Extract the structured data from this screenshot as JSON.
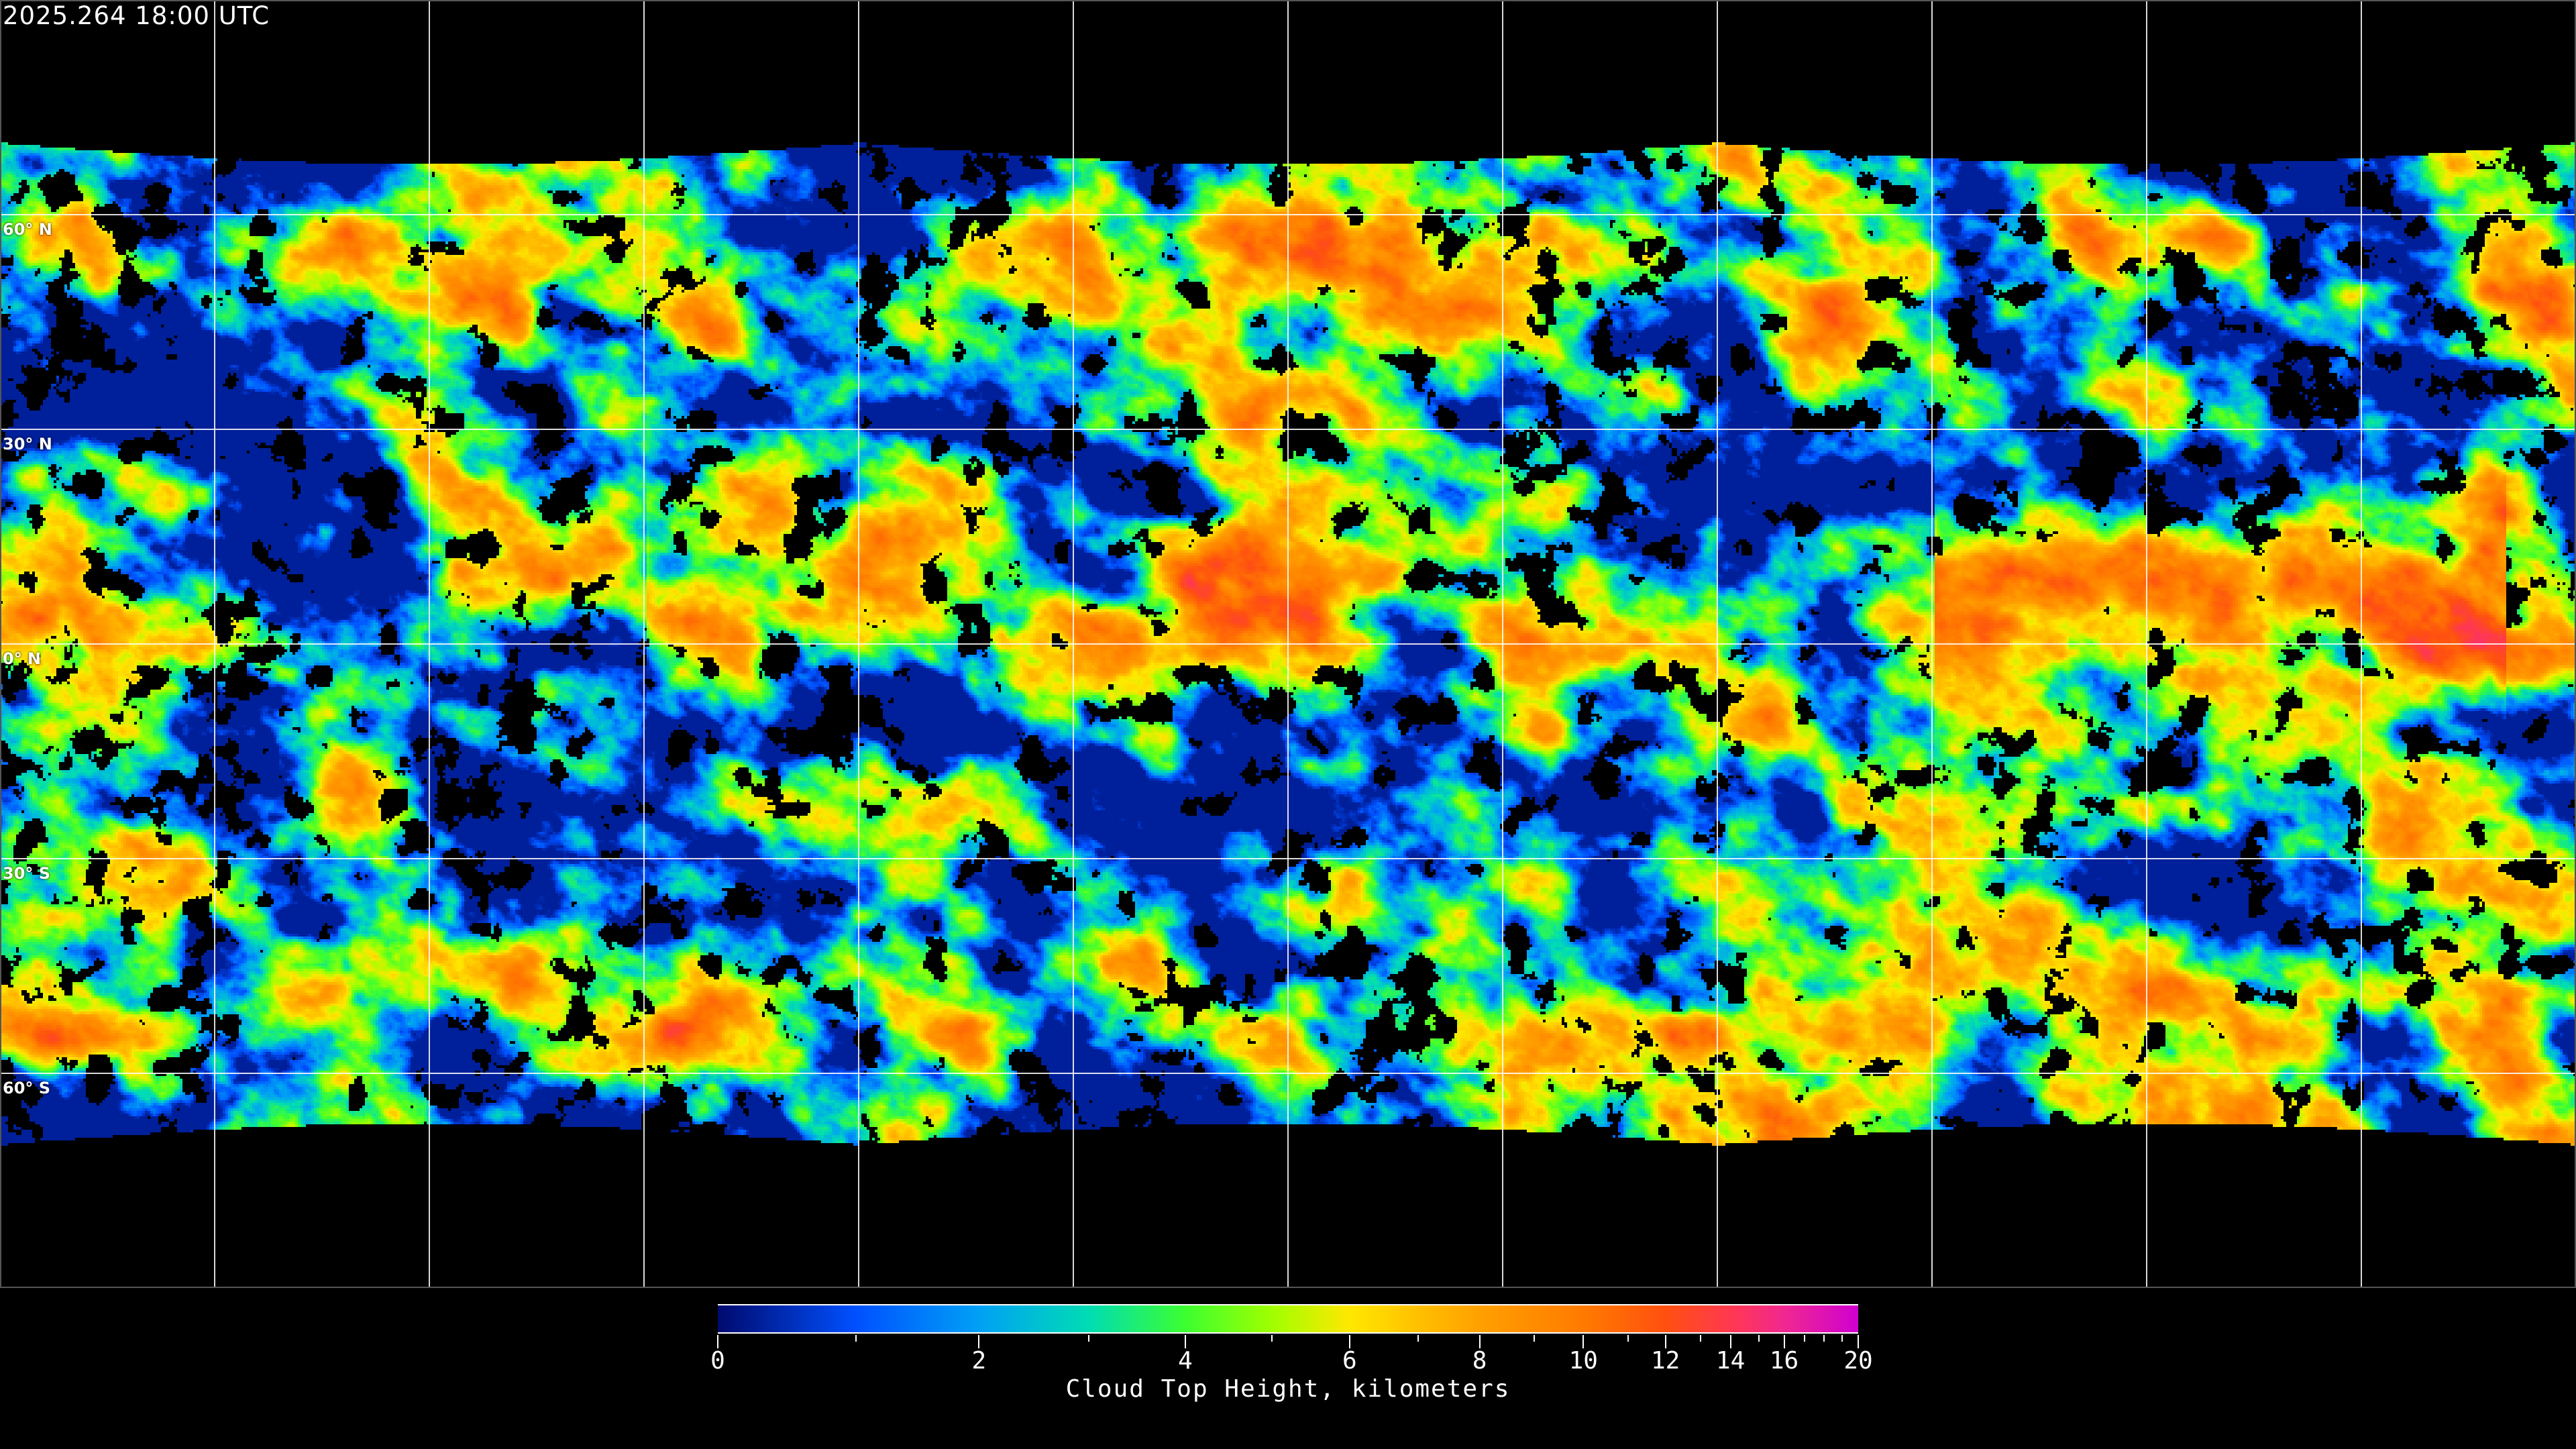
{
  "timestamp": "2025.264 18:00 UTC",
  "map": {
    "projection": "equirectangular",
    "lat_labels": [
      "60° N",
      "30° N",
      "0° N",
      "30° S",
      "60° S"
    ],
    "lat_values": [
      60,
      30,
      0,
      -30,
      -60
    ],
    "lon_grid_spacing_deg": 30,
    "gridlines": "on",
    "coastlines_color": "#ffffff"
  },
  "colorbar": {
    "title": "Cloud Top Height, kilometers",
    "range": [
      0,
      20
    ],
    "major_ticks": [
      0,
      2,
      4,
      6,
      8,
      10,
      12,
      14,
      16,
      20
    ],
    "major_labels": [
      "0",
      "2",
      "4",
      "6",
      "8",
      "10",
      "12",
      "14",
      "16",
      "20"
    ],
    "minor_ticks": [
      1,
      3,
      5,
      7,
      9,
      11,
      13,
      15,
      17,
      18,
      19
    ],
    "colors": {
      "0": "#000a6e",
      "1": "#0050ff",
      "2": "#00a0f5",
      "3": "#00dcb4",
      "4": "#3cff30",
      "5": "#a0ff00",
      "6": "#ffe800",
      "7": "#ffc000",
      "8": "#ffa000",
      "10": "#ff7a00",
      "12": "#ff5010",
      "14": "#ff3850",
      "16": "#f02890",
      "20": "#d000d0"
    }
  }
}
